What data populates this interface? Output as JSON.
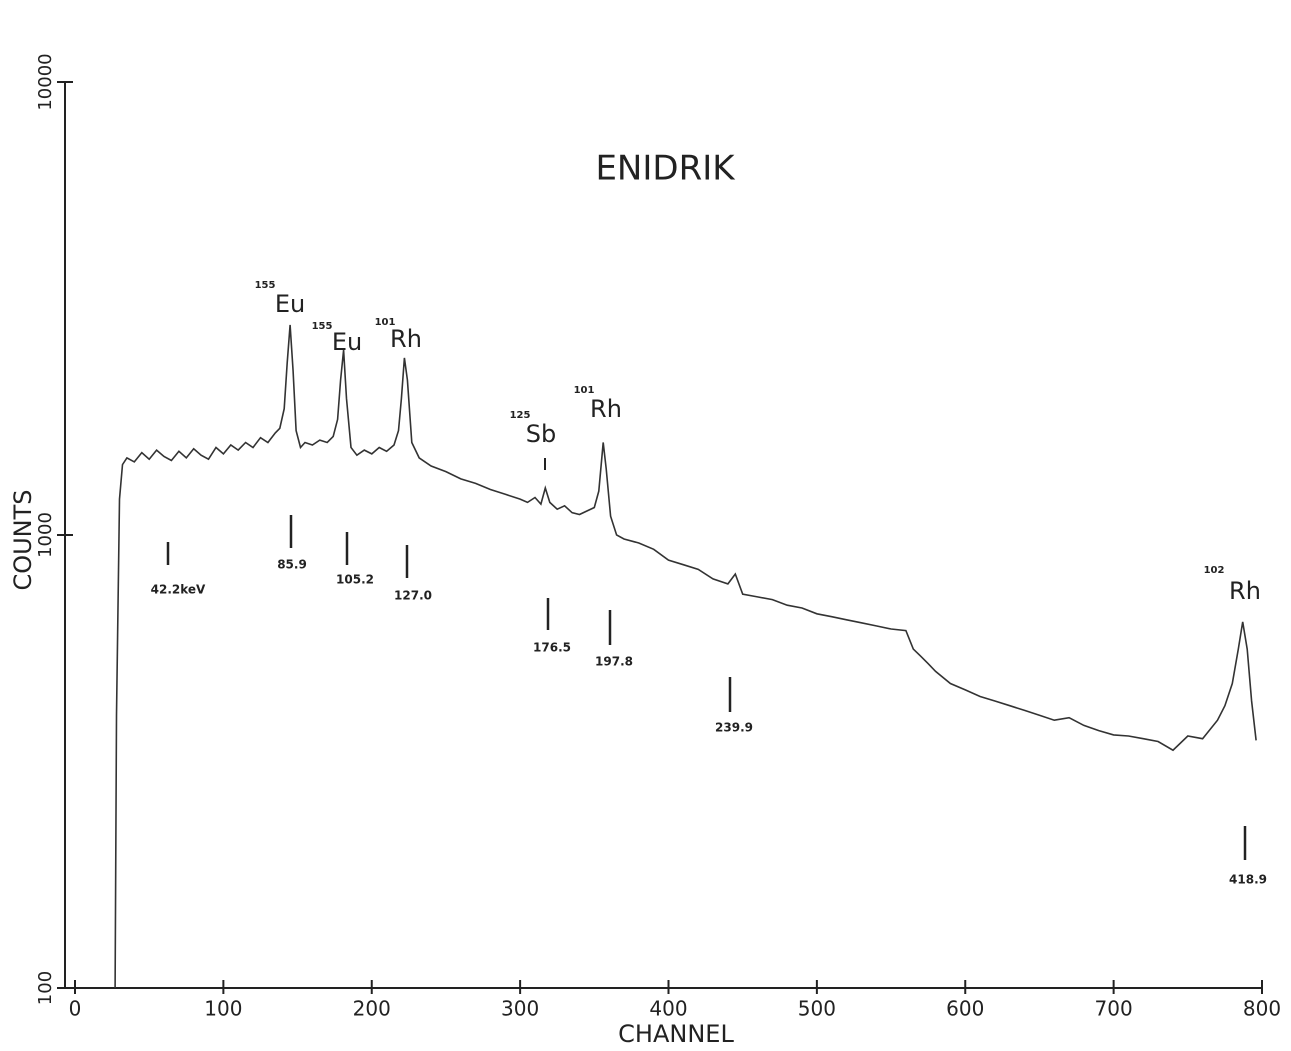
{
  "chart_data": {
    "type": "line",
    "title": "ENIDRIK",
    "x_label": "CHANNEL",
    "y_label": "COUNTS",
    "log_y": true,
    "color": "#333333",
    "xlim": [
      0,
      800
    ],
    "xticks": [
      0,
      100,
      200,
      300,
      400,
      500,
      600,
      700,
      800
    ],
    "ylim": [
      100,
      10000
    ],
    "yticks": [
      100,
      1000,
      10000
    ],
    "x": [
      27,
      28,
      30,
      32,
      35,
      40,
      45,
      50,
      55,
      60,
      65,
      70,
      75,
      80,
      85,
      90,
      95,
      100,
      105,
      110,
      115,
      120,
      125,
      130,
      135,
      138,
      141,
      143,
      145,
      147,
      149,
      152,
      155,
      160,
      165,
      170,
      174,
      177,
      179,
      181,
      183,
      186,
      190,
      195,
      200,
      205,
      210,
      215,
      218,
      220,
      222,
      224,
      227,
      232,
      240,
      250,
      260,
      270,
      280,
      290,
      300,
      305,
      310,
      314,
      317,
      320,
      325,
      330,
      335,
      340,
      345,
      350,
      353,
      356,
      358,
      361,
      365,
      370,
      380,
      390,
      400,
      410,
      420,
      430,
      440,
      445,
      450,
      460,
      470,
      480,
      490,
      500,
      510,
      520,
      530,
      540,
      550,
      560,
      565,
      570,
      575,
      580,
      590,
      600,
      610,
      620,
      630,
      640,
      650,
      660,
      670,
      680,
      690,
      700,
      710,
      720,
      730,
      740,
      750,
      760,
      770,
      775,
      780,
      784,
      787,
      790,
      793,
      796
    ],
    "values": [
      100,
      400,
      1200,
      1430,
      1480,
      1450,
      1520,
      1470,
      1540,
      1490,
      1460,
      1530,
      1480,
      1550,
      1500,
      1470,
      1560,
      1510,
      1580,
      1540,
      1600,
      1560,
      1640,
      1600,
      1680,
      1720,
      1900,
      2400,
      2910,
      2300,
      1700,
      1560,
      1600,
      1580,
      1620,
      1600,
      1650,
      1800,
      2200,
      2560,
      2000,
      1560,
      1500,
      1540,
      1510,
      1560,
      1530,
      1580,
      1700,
      2000,
      2460,
      2200,
      1600,
      1480,
      1420,
      1380,
      1330,
      1300,
      1260,
      1230,
      1200,
      1180,
      1210,
      1170,
      1270,
      1180,
      1140,
      1160,
      1120,
      1110,
      1130,
      1150,
      1250,
      1600,
      1400,
      1100,
      1000,
      980,
      960,
      930,
      880,
      860,
      840,
      800,
      780,
      820,
      740,
      730,
      720,
      700,
      690,
      670,
      660,
      650,
      640,
      630,
      620,
      615,
      560,
      540,
      520,
      500,
      470,
      455,
      440,
      430,
      420,
      410,
      400,
      390,
      395,
      380,
      370,
      362,
      360,
      355,
      350,
      335,
      360,
      355,
      390,
      420,
      470,
      560,
      643,
      560,
      430,
      352
    ],
    "peak_labels": [
      {
        "mass": "155",
        "element": "Eu"
      },
      {
        "mass": "155",
        "element": "Eu"
      },
      {
        "mass": "101",
        "element": "Rh"
      },
      {
        "mass": "125",
        "element": "Sb"
      },
      {
        "mass": "101",
        "element": "Rh"
      },
      {
        "mass": "102",
        "element": "Rh"
      }
    ],
    "energy_labels": [
      "42.2keV",
      "85.9",
      "105.2",
      "127.0",
      "176.5",
      "197.8",
      "239.9",
      "418.9"
    ]
  }
}
